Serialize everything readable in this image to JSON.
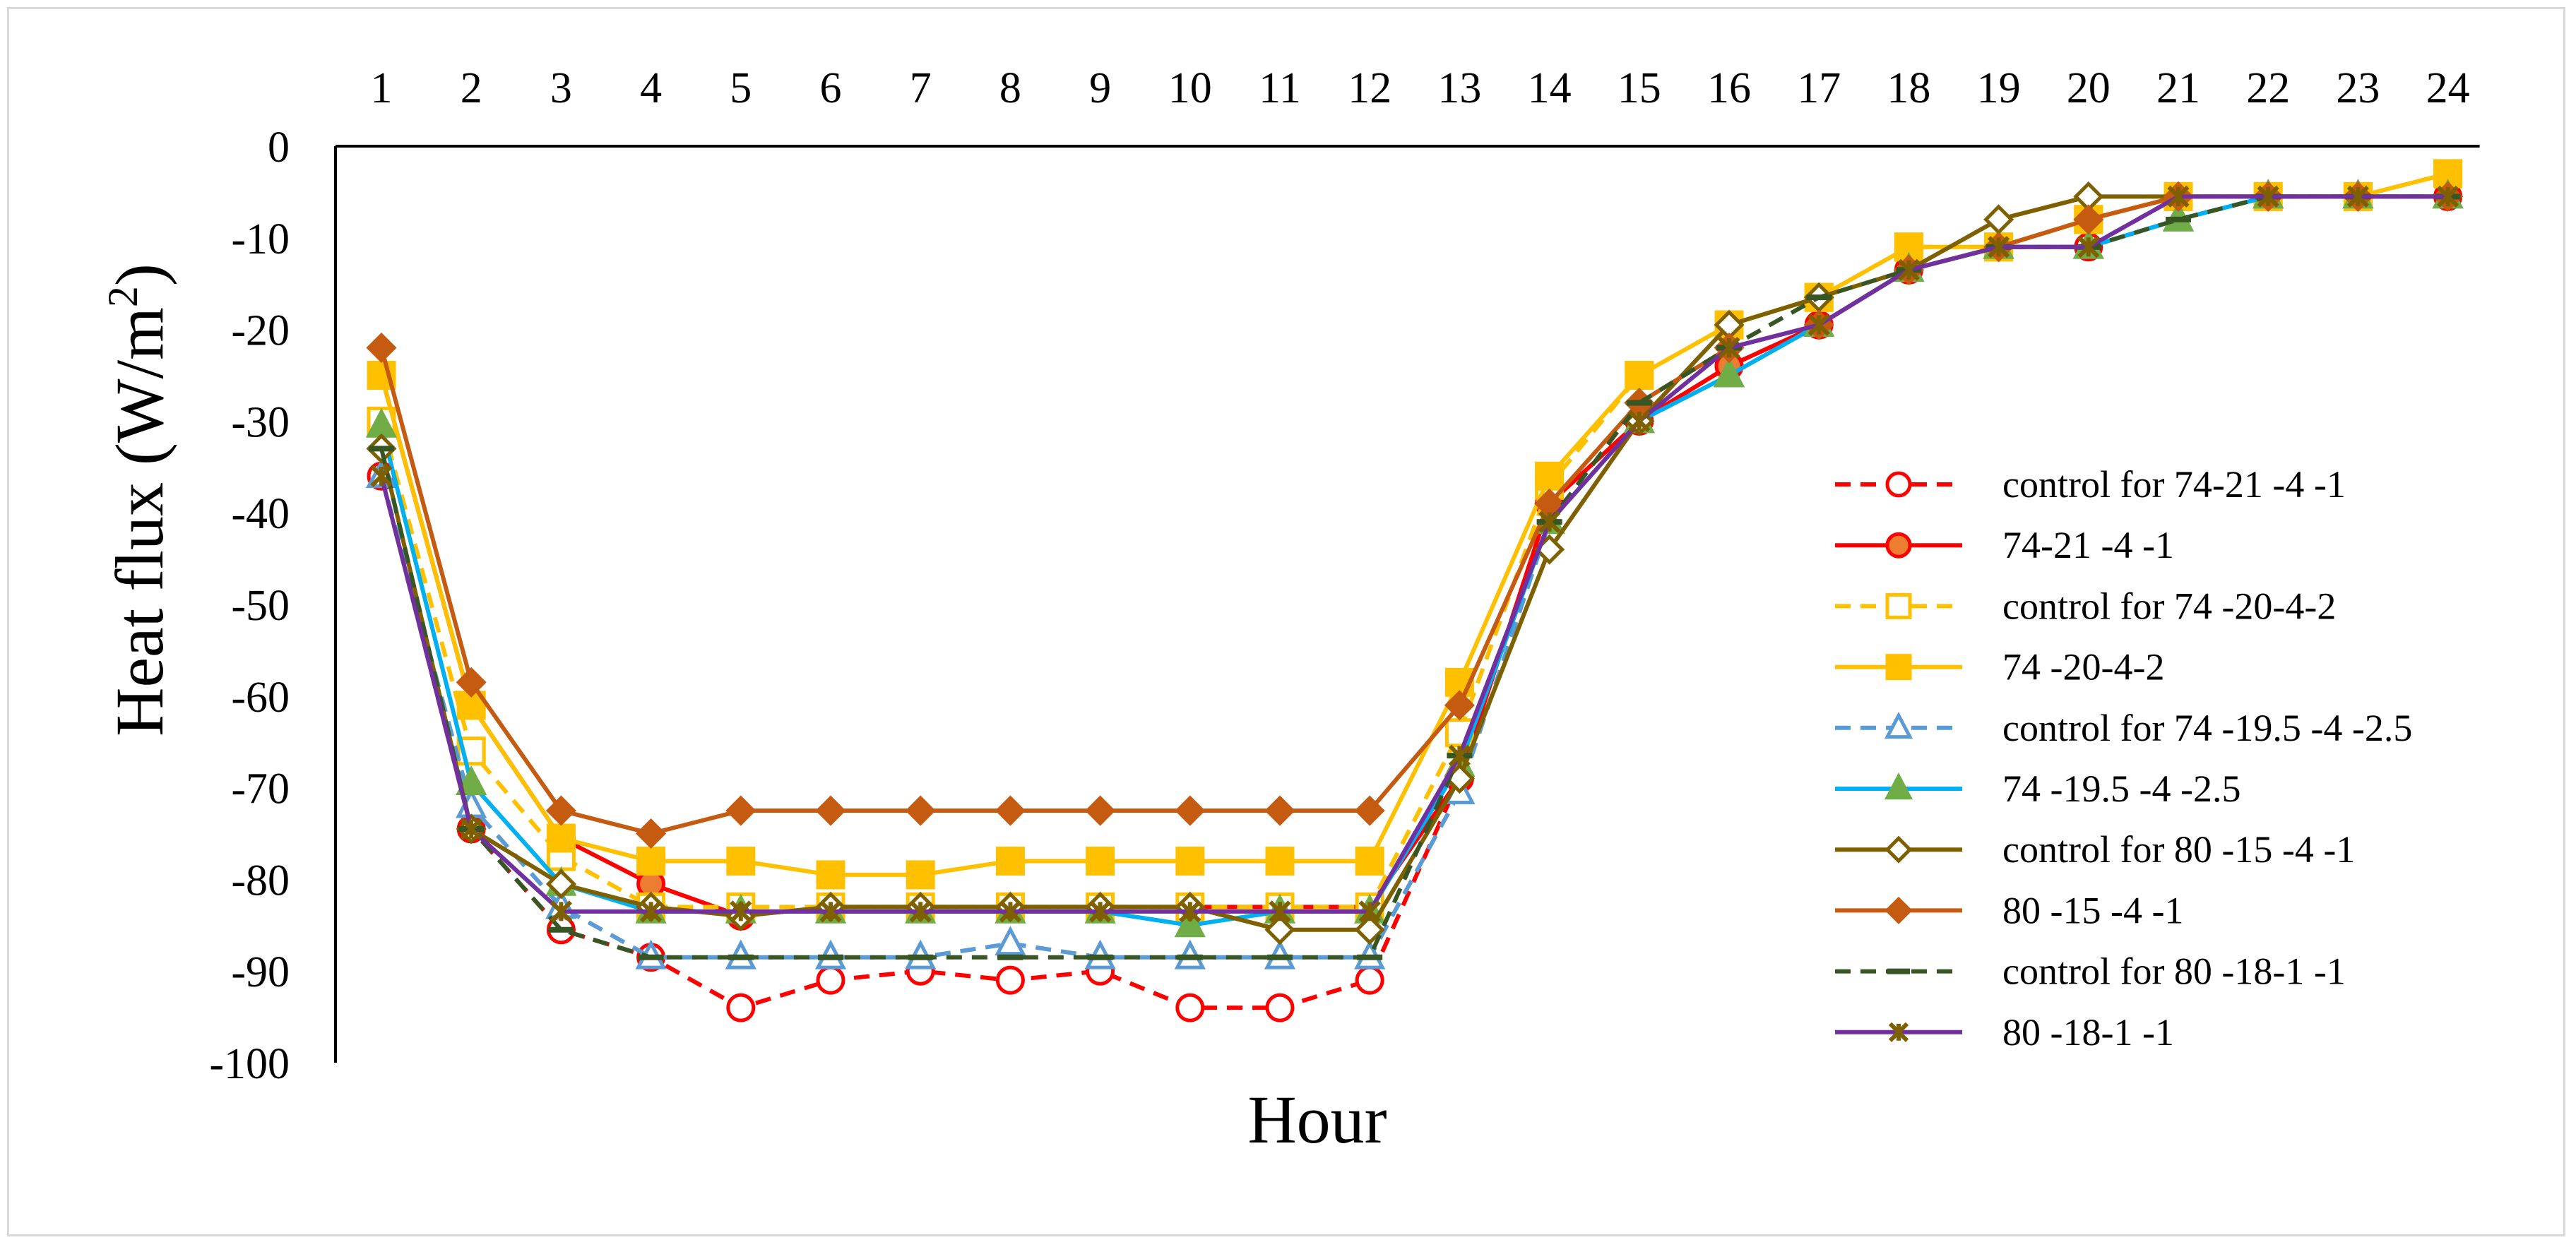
{
  "chart_data": {
    "type": "line",
    "title": "",
    "xlabel": "Hour",
    "ylabel": "Heat flux (W/m",
    "ylabel_sup": "2",
    "ylabel_close": ")",
    "x": [
      1,
      2,
      3,
      4,
      5,
      6,
      7,
      8,
      9,
      10,
      11,
      12,
      13,
      14,
      15,
      16,
      17,
      18,
      19,
      20,
      21,
      22,
      23,
      24
    ],
    "ylim": [
      -100,
      0
    ],
    "yticks": [
      0,
      -10,
      -20,
      -30,
      -40,
      -50,
      -60,
      -70,
      -80,
      -90,
      -100
    ],
    "x_axis_position": "top",
    "grid": false,
    "legend_position": "right",
    "series": [
      {
        "name": "control for 74-21 -4 -1",
        "color": "#ff0000",
        "dash": "dashed",
        "marker": "circle-open",
        "values": [
          -36,
          -74.5,
          -85.5,
          -88.5,
          -94,
          -91,
          -90,
          -91,
          -90,
          -94,
          -94,
          -91,
          -69,
          -39,
          -30,
          -24,
          -19.5,
          -13.5,
          -11,
          -11,
          -5.5,
          -5.5,
          -5.5,
          -5.5
        ]
      },
      {
        "name": "74-21 -4 -1",
        "color": "#ff0000",
        "dash": "solid",
        "marker": "circle-filled",
        "values": [
          -25,
          -61,
          -75.5,
          -80.5,
          -84,
          -83,
          -83,
          -83,
          -83,
          -83,
          -83,
          -83,
          -69,
          -39,
          -30,
          -24,
          -19.5,
          -13.5,
          -11,
          -8,
          -5.5,
          -5.5,
          -5.5,
          -5.5
        ]
      },
      {
        "name": "control for 74 -20-4-2",
        "color": "#ffc000",
        "dash": "dashed",
        "marker": "square-open",
        "values": [
          -30,
          -66,
          -77.5,
          -83,
          -83,
          -83,
          -83,
          -83,
          -83,
          -83,
          -83,
          -83,
          -64,
          -37,
          -25,
          -19.5,
          -16.5,
          -11,
          -11,
          -8,
          -5.5,
          -5.5,
          -5.5,
          -3
        ]
      },
      {
        "name": "74 -20-4-2",
        "color": "#ffc000",
        "dash": "solid",
        "marker": "square-filled",
        "values": [
          -25,
          -61,
          -75.5,
          -78,
          -78,
          -79.5,
          -79.5,
          -78,
          -78,
          -78,
          -78,
          -78,
          -58.5,
          -36,
          -25,
          -19.5,
          -16.5,
          -11,
          -11,
          -8,
          -5.5,
          -5.5,
          -5.5,
          -3
        ]
      },
      {
        "name": "control for 74 -19.5 -4 -2.5",
        "color": "#5b9bd5",
        "dash": "dashed",
        "marker": "triangle-open",
        "values": [
          -36,
          -72,
          -83,
          -88.5,
          -88.5,
          -88.5,
          -88.5,
          -87,
          -88.5,
          -88.5,
          -88.5,
          -88.5,
          -70.5,
          -41,
          -30,
          -25,
          -19.5,
          -13.5,
          -11,
          -11,
          -8,
          -5.5,
          -5.5,
          -5.5
        ]
      },
      {
        "name": "74 -19.5 -4 -2.5",
        "color": "#00b0f0",
        "dash": "solid",
        "marker": "triangle-filled",
        "marker_fill": "#70ad47",
        "values": [
          -30.5,
          -69.5,
          -80.5,
          -83.5,
          -83.5,
          -83.5,
          -83.5,
          -83.5,
          -83.5,
          -85,
          -83.5,
          -83.5,
          -67.5,
          -41,
          -30,
          -25,
          -19.5,
          -13.5,
          -11,
          -11,
          -8,
          -5.5,
          -5.5,
          -5.5
        ]
      },
      {
        "name": "control for 80 -15 -4 -1",
        "color": "#7f6000",
        "dash": "solid",
        "marker": "diamond-open",
        "values": [
          -33,
          -74.5,
          -80.5,
          -83,
          -84,
          -83,
          -83,
          -83,
          -83,
          -83,
          -85.5,
          -85.5,
          -69,
          -44,
          -30,
          -19.5,
          -16.5,
          -13.5,
          -8,
          -5.5,
          -5.5,
          -5.5,
          -5.5,
          -5.5
        ]
      },
      {
        "name": "80 -15 -4 -1",
        "color": "#c55a11",
        "dash": "solid",
        "marker": "diamond-filled",
        "values": [
          -22,
          -58.5,
          -72.5,
          -75,
          -72.5,
          -72.5,
          -72.5,
          -72.5,
          -72.5,
          -72.5,
          -72.5,
          -72.5,
          -61,
          -39,
          -28,
          -22,
          -19.5,
          -13.5,
          -11,
          -8,
          -5.5,
          -5.5,
          -5.5,
          -5.5
        ]
      },
      {
        "name": "control for 80 -18-1 -1",
        "color": "#375623",
        "dash": "dashed",
        "marker": "dash",
        "values": [
          -33,
          -74.5,
          -85.5,
          -88.5,
          -88.5,
          -88.5,
          -88.5,
          -88.5,
          -88.5,
          -88.5,
          -88.5,
          -88.5,
          -66.5,
          -41,
          -28,
          -22,
          -16.5,
          -13.5,
          -11,
          -11,
          -8,
          -5.5,
          -5.5,
          -5.5
        ]
      },
      {
        "name": "80 -18-1 -1",
        "color": "#7030a0",
        "dash": "solid",
        "marker": "star",
        "marker_fill": "#7f6000",
        "values": [
          -36,
          -74.5,
          -83.5,
          -83.5,
          -83.5,
          -83.5,
          -83.5,
          -83.5,
          -83.5,
          -83.5,
          -83.5,
          -83.5,
          -66.5,
          -41,
          -30,
          -22,
          -19.5,
          -13.5,
          -11,
          -11,
          -5.5,
          -5.5,
          -5.5,
          -5.5
        ]
      }
    ]
  }
}
